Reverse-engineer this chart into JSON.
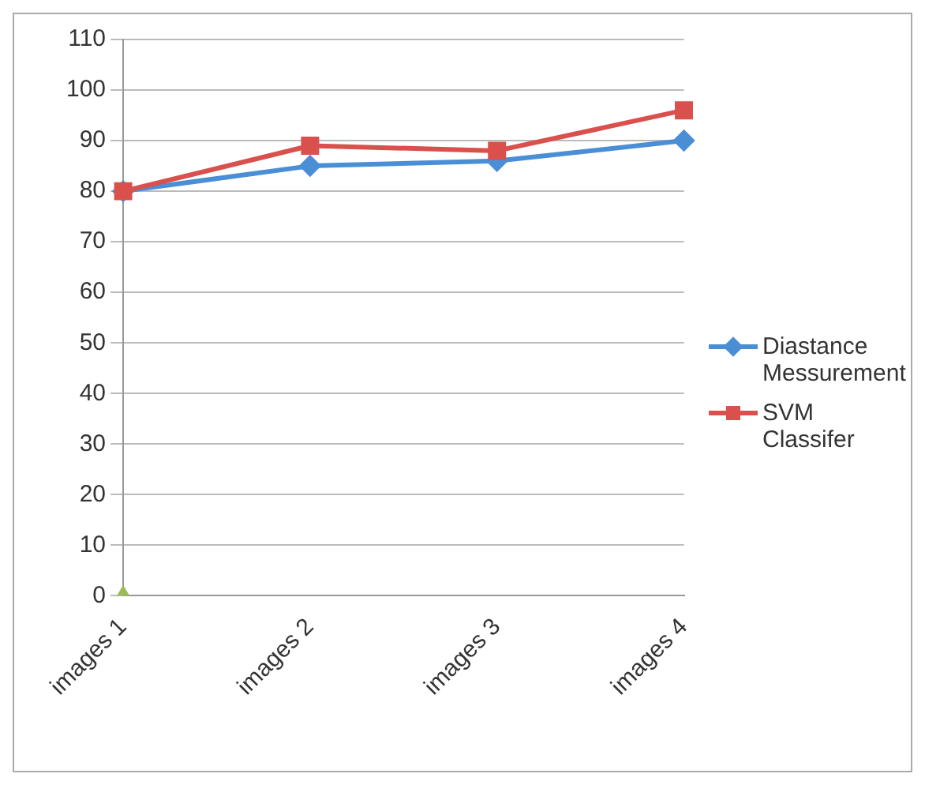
{
  "chart_data": {
    "type": "line",
    "categories": [
      "images 1",
      "images 2",
      "images 3",
      "images 4"
    ],
    "series": [
      {
        "name": "Diastance Messurement",
        "color": "#4a8fd6",
        "values": [
          80,
          85,
          86,
          90
        ],
        "marker": "diamond"
      },
      {
        "name": "SVM Classifer",
        "color": "#d9504d",
        "values": [
          80,
          89,
          88,
          96
        ],
        "marker": "square"
      },
      {
        "type": "scatter",
        "color": "#9bbb59",
        "values": [
          0,
          null,
          null,
          null
        ],
        "marker": "triangle"
      }
    ],
    "ylim": [
      0,
      110
    ],
    "yticks": [
      0,
      10,
      20,
      30,
      40,
      50,
      60,
      70,
      80,
      90,
      100,
      110
    ],
    "grid": "y",
    "legend": "right"
  }
}
